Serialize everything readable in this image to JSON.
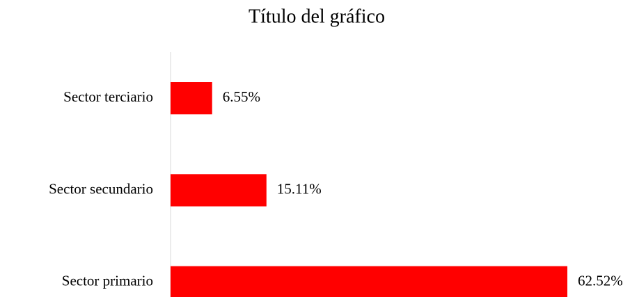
{
  "chart_data": {
    "type": "bar",
    "orientation": "horizontal",
    "title": "Título del gráfico",
    "categories": [
      "Sector terciario",
      "Sector secundario",
      "Sector primario"
    ],
    "values": [
      6.55,
      15.11,
      62.52
    ],
    "value_labels": [
      "6.55%",
      "15.11%",
      "62.52%"
    ],
    "color": "#ff0000"
  }
}
